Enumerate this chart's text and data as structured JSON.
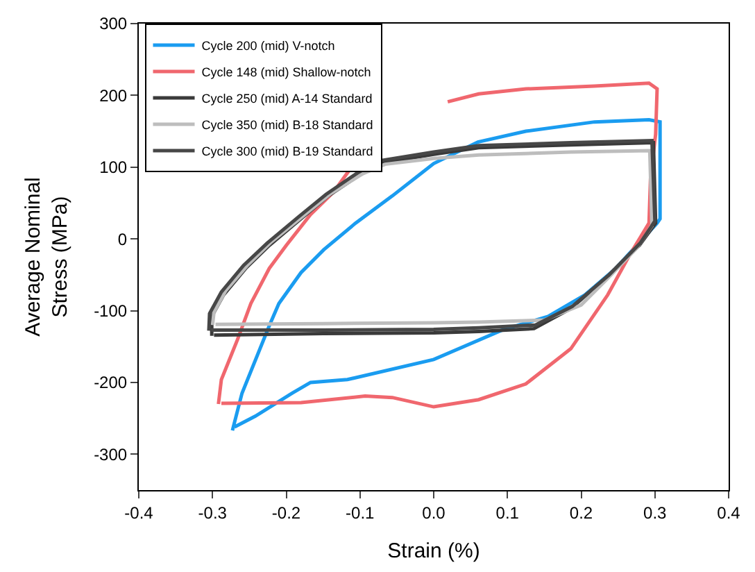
{
  "chart_data": {
    "type": "line",
    "xlabel": "Strain (%)",
    "ylabel": "Average Nominal\nStress (MPa)",
    "xlim": [
      -0.4,
      0.4
    ],
    "xticks": [
      {
        "value": -0.4,
        "label": "-0.4"
      },
      {
        "value": -0.3,
        "label": "-0.3"
      },
      {
        "value": -0.2,
        "label": "-0.2"
      },
      {
        "value": -0.1,
        "label": "-0.1"
      },
      {
        "value": 0,
        "label": "0.0"
      },
      {
        "value": 0.1,
        "label": "0.1"
      },
      {
        "value": 0.2,
        "label": "0.2"
      },
      {
        "value": 0.3,
        "label": "0.3"
      },
      {
        "value": 0.4,
        "label": "0.4"
      }
    ],
    "ylim": [
      -350,
      300
    ],
    "yticks": [
      -300,
      -200,
      -100,
      0,
      100,
      200,
      300
    ],
    "legend": "top left",
    "marker": "none",
    "line_style": "solid",
    "series": [
      {
        "name": "Cycle 200 (mid) V-notch",
        "color": "#1a9cf0",
        "x": [
          -0.273,
          -0.26,
          -0.223,
          -0.21,
          -0.18,
          -0.149,
          -0.106,
          -0.056,
          0,
          0.06,
          0.125,
          0.218,
          0.292,
          0.307,
          0.307,
          0.303,
          0.247,
          0.205,
          0.155,
          0.093,
          0,
          -0.117,
          -0.167,
          -0.192,
          -0.242,
          -0.27
        ],
        "values": [
          -267,
          -215,
          -121,
          -90,
          -47,
          -15,
          22,
          60,
          105,
          135,
          150,
          163,
          166,
          163,
          28,
          22,
          -41,
          -78,
          -108,
          -127,
          -168,
          -196,
          -200,
          -215,
          -247,
          -262
        ]
      },
      {
        "name": "Cycle 148 (mid) Shallow-notch",
        "color": "#f0676e",
        "x": [
          -0.292,
          -0.288,
          -0.266,
          -0.248,
          -0.223,
          -0.2,
          -0.167,
          -0.136,
          -0.115,
          -0.08,
          -0.047,
          0.019,
          0.061,
          0.125,
          0.218,
          0.292,
          0.303,
          0.301,
          0.294,
          0.292,
          0.266,
          0.236,
          0.186,
          0.125,
          0.061,
          0,
          -0.056,
          -0.093,
          -0.18,
          -0.288
        ],
        "values": [
          -230,
          -196,
          -140,
          -90,
          -41,
          -9,
          34,
          65,
          95,
          null,
          null,
          191,
          202,
          209,
          213,
          217,
          209,
          146,
          84,
          22,
          -22,
          -78,
          -153,
          -202,
          -224,
          -234,
          -221,
          -219,
          -228,
          -229
        ]
      },
      {
        "name": "Cycle 250 (mid) A-14 Standard",
        "color": "#3a3a3a",
        "x": [
          -0.301,
          -0.301,
          -0.285,
          -0.255,
          -0.223,
          -0.18,
          -0.143,
          -0.099,
          -0.069,
          0,
          0.061,
          0.186,
          0.298,
          0.301,
          0.279,
          0.236,
          0.186,
          0.136,
          0.061,
          0,
          -0.15,
          -0.298
        ],
        "values": [
          -135,
          -108,
          -78,
          -41,
          -9,
          28,
          60,
          90,
          106,
          118,
          127,
          131,
          134,
          22,
          -9,
          -52,
          -97,
          -125,
          -129,
          -131,
          -132,
          -134
        ]
      },
      {
        "name": "Cycle 350 (mid) B-18 Standard",
        "color": "#bdbdbd",
        "x": [
          -0.3,
          -0.298,
          -0.282,
          -0.252,
          -0.22,
          -0.177,
          -0.14,
          -0.096,
          -0.066,
          0,
          0.061,
          0.186,
          0.293,
          0.296,
          0.276,
          0.236,
          0.2,
          0.15,
          0.061,
          0,
          -0.15,
          -0.296
        ],
        "values": [
          -120,
          -102,
          -72,
          -36,
          -4,
          32,
          63,
          91,
          104,
          112,
          117,
          121,
          123,
          18,
          -12,
          -55,
          -92,
          -113,
          -116,
          -117,
          -118,
          -119
        ]
      },
      {
        "name": "Cycle 300 (mid) B-19 Standard",
        "color": "#474747",
        "x": [
          -0.305,
          -0.304,
          -0.288,
          -0.258,
          -0.226,
          -0.183,
          -0.146,
          -0.102,
          -0.072,
          0,
          0.061,
          0.186,
          0.296,
          0.3,
          0.28,
          0.238,
          0.188,
          0.138,
          0.061,
          0,
          -0.15,
          -0.302
        ],
        "values": [
          -128,
          -104,
          -74,
          -37,
          -6,
          31,
          62,
          93,
          109,
          121,
          130,
          134,
          137,
          25,
          -6,
          -50,
          -94,
          -120,
          -124,
          -126,
          -127,
          -127
        ]
      }
    ]
  }
}
